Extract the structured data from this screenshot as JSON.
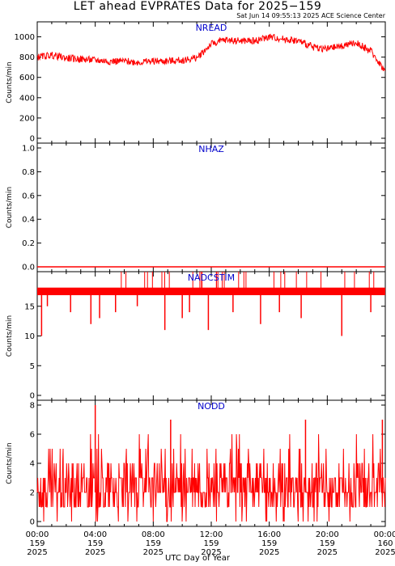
{
  "title": "LET ahead EVPRATES Data for 2025−159",
  "timestamp": "Sat Jun 14 09:55:13 2025 ACE Science Center",
  "xlabel": "UTC Day of Year",
  "colors": {
    "series": "#ff0000",
    "panel_label": "#0000cc",
    "axes": "#000000"
  },
  "x_ticks": [
    {
      "time": "00:00",
      "doy": "159",
      "year": "2025"
    },
    {
      "time": "04:00",
      "doy": "159",
      "year": "2025"
    },
    {
      "time": "08:00",
      "doy": "159",
      "year": "2025"
    },
    {
      "time": "12:00",
      "doy": "159",
      "year": "2025"
    },
    {
      "time": "16:00",
      "doy": "159",
      "year": "2025"
    },
    {
      "time": "20:00",
      "doy": "159",
      "year": "2025"
    },
    {
      "time": "00:00",
      "doy": "160",
      "year": "2025"
    }
  ],
  "chart_data": [
    {
      "type": "line",
      "name": "NREAD",
      "ylabel": "Counts/min",
      "xlim_hours": [
        0,
        24
      ],
      "ylim": [
        0,
        1100
      ],
      "yticks": [
        0,
        200,
        400,
        600,
        800,
        1000
      ],
      "x_hours": [
        0,
        1,
        2,
        3,
        4,
        5,
        6,
        7,
        8,
        9,
        10,
        11,
        12,
        13,
        14,
        15,
        16,
        17,
        18,
        19,
        20,
        21,
        22,
        23,
        24
      ],
      "values": [
        800,
        820,
        790,
        780,
        770,
        760,
        760,
        750,
        760,
        760,
        770,
        790,
        930,
        970,
        960,
        960,
        1000,
        980,
        960,
        900,
        880,
        910,
        940,
        860,
        660
      ]
    },
    {
      "type": "line",
      "name": "NHAZ",
      "ylabel": "Counts/min",
      "xlim_hours": [
        0,
        24
      ],
      "ylim": [
        0,
        1
      ],
      "yticks": [
        0.0,
        0.2,
        0.4,
        0.6,
        0.8,
        1.0
      ],
      "x_hours": [
        0,
        24
      ],
      "values": [
        0,
        0
      ]
    },
    {
      "type": "line",
      "name": "NADCSTIM",
      "ylabel": "Counts/min",
      "xlim_hours": [
        0,
        24
      ],
      "ylim": [
        0,
        20
      ],
      "yticks": [
        0,
        5,
        10,
        15
      ],
      "baseline": [
        17,
        18
      ],
      "dips": [
        {
          "x_hour": 0.3,
          "value": 10
        },
        {
          "x_hour": 0.7,
          "value": 15
        },
        {
          "x_hour": 2.3,
          "value": 14
        },
        {
          "x_hour": 3.7,
          "value": 12
        },
        {
          "x_hour": 4.3,
          "value": 13
        },
        {
          "x_hour": 5.4,
          "value": 14
        },
        {
          "x_hour": 6.9,
          "value": 15
        },
        {
          "x_hour": 8.8,
          "value": 11
        },
        {
          "x_hour": 10.0,
          "value": 13
        },
        {
          "x_hour": 10.5,
          "value": 14
        },
        {
          "x_hour": 11.8,
          "value": 11
        },
        {
          "x_hour": 13.5,
          "value": 14
        },
        {
          "x_hour": 15.4,
          "value": 12
        },
        {
          "x_hour": 16.7,
          "value": 14
        },
        {
          "x_hour": 18.2,
          "value": 13
        },
        {
          "x_hour": 21.0,
          "value": 10
        },
        {
          "x_hour": 23.0,
          "value": 14
        }
      ]
    },
    {
      "type": "line",
      "name": "NODD",
      "ylabel": "Counts/min",
      "xlim_hours": [
        0,
        24
      ],
      "ylim": [
        0,
        8
      ],
      "yticks": [
        0,
        2,
        4,
        6,
        8
      ],
      "typical_range": [
        1,
        4
      ],
      "peaks": [
        {
          "x_hour": 4.0,
          "value": 8
        },
        {
          "x_hour": 23.8,
          "value": 7
        },
        {
          "x_hour": 9.2,
          "value": 7
        },
        {
          "x_hour": 18.5,
          "value": 7
        }
      ]
    }
  ]
}
